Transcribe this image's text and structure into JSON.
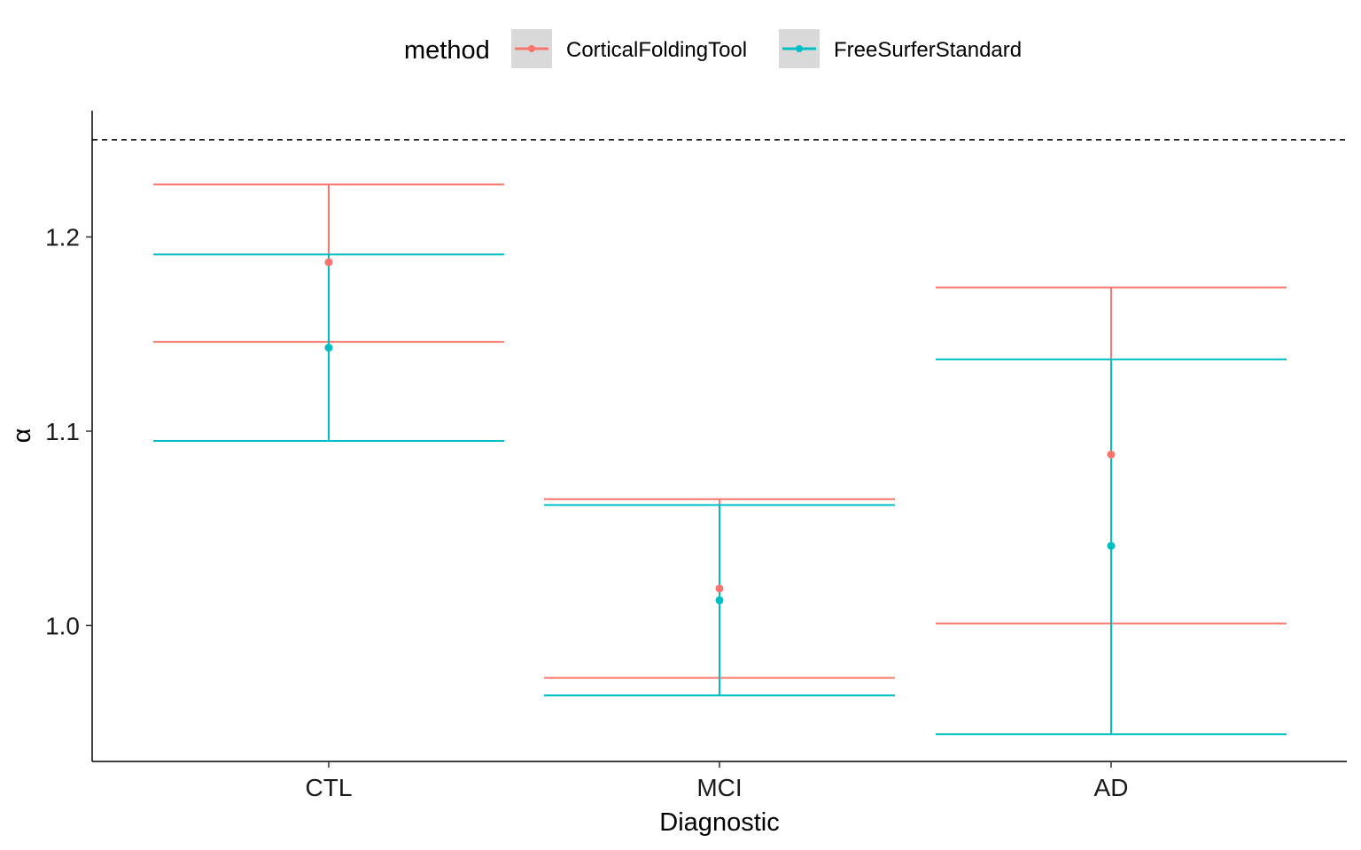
{
  "chart_data": {
    "type": "errorbar",
    "xlabel": "Diagnostic",
    "ylabel": "α",
    "categories": [
      "CTL",
      "MCI",
      "AD"
    ],
    "ylim": [
      0.93,
      1.265
    ],
    "yticks": [
      1.0,
      1.1,
      1.2
    ],
    "ytick_labels": [
      "1.0",
      "1.1",
      "1.2"
    ],
    "reference_line": {
      "y": 1.25,
      "style": "dashed"
    },
    "grid": false,
    "legend": {
      "title": "method",
      "placement": "top"
    },
    "series": [
      {
        "name": "CorticalFoldingTool",
        "color": "#F8766D",
        "points": [
          {
            "category": "CTL",
            "y": 1.187,
            "ymin": 1.146,
            "ymax": 1.227
          },
          {
            "category": "MCI",
            "y": 1.019,
            "ymin": 0.973,
            "ymax": 1.065
          },
          {
            "category": "AD",
            "y": 1.088,
            "ymin": 1.001,
            "ymax": 1.174
          }
        ]
      },
      {
        "name": "FreeSurferStandard",
        "color": "#00BFC4",
        "points": [
          {
            "category": "CTL",
            "y": 1.143,
            "ymin": 1.095,
            "ymax": 1.191
          },
          {
            "category": "MCI",
            "y": 1.013,
            "ymin": 0.964,
            "ymax": 1.062
          },
          {
            "category": "AD",
            "y": 1.041,
            "ymin": 0.944,
            "ymax": 1.137
          }
        ]
      }
    ]
  }
}
